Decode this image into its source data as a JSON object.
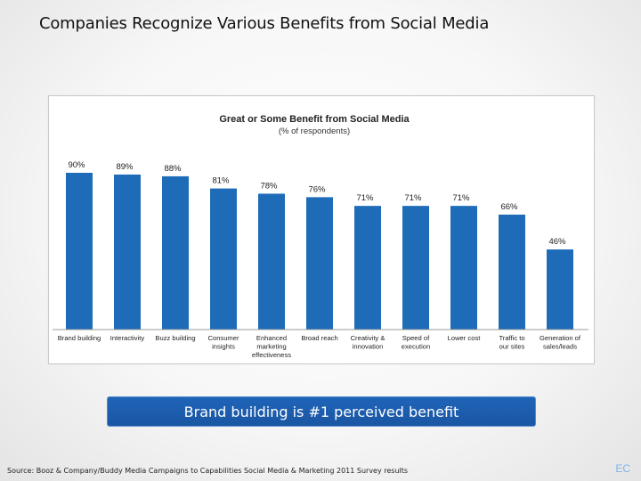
{
  "slide": {
    "title": "Companies Recognize Various Benefits from Social Media",
    "callout": "Brand building is #1 perceived benefit",
    "source": "Source: Booz & Company/Buddy Media Campaigns to Capabilities Social Media & Marketing 2011 Survey results",
    "corner_mark": "EC"
  },
  "colors": {
    "bar": "#1e6cb8",
    "axis": "#9a9a9a"
  },
  "chart_data": {
    "type": "bar",
    "title": "Great or Some Benefit from Social Media",
    "subtitle": "(% of respondents)",
    "xlabel": "",
    "ylabel": "",
    "ylim": [
      0,
      100
    ],
    "grid": false,
    "categories": [
      "Brand building",
      "Interactivity",
      "Buzz building",
      "Consumer insights",
      "Enhanced marketing effectiveness",
      "Broad reach",
      "Creativity & innovation",
      "Speed of execution",
      "Lower cost",
      "Traffic to our sites",
      "Generation of sales/leads"
    ],
    "category_lines": [
      [
        "Brand building"
      ],
      [
        "Interactivity"
      ],
      [
        "Buzz building"
      ],
      [
        "Consumer",
        "insights"
      ],
      [
        "Enhanced",
        "marketing",
        "effectiveness"
      ],
      [
        "Broad reach"
      ],
      [
        "Creativity &",
        "innovation"
      ],
      [
        "Speed of",
        "execution"
      ],
      [
        "Lower cost"
      ],
      [
        "Traffic to",
        "our sites"
      ],
      [
        "Generation of",
        "sales/leads"
      ]
    ],
    "values": [
      90,
      89,
      88,
      81,
      78,
      76,
      71,
      71,
      71,
      66,
      46
    ],
    "value_labels": [
      "90%",
      "89%",
      "88%",
      "81%",
      "78%",
      "76%",
      "71%",
      "71%",
      "71%",
      "66%",
      "46%"
    ]
  }
}
